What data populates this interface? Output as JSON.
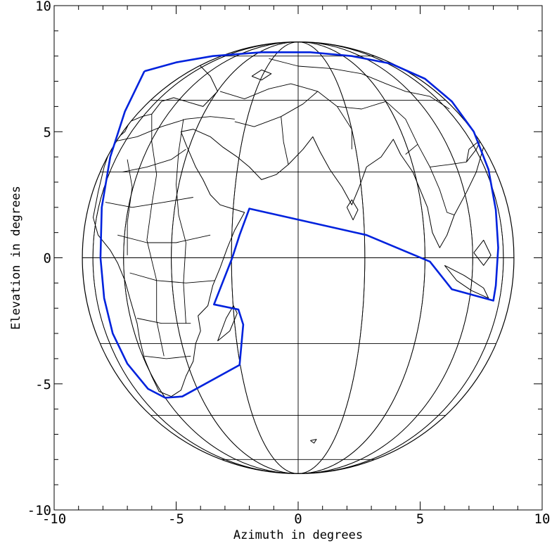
{
  "chart_data": {
    "type": "map",
    "xlabel": "Azimuth in degrees",
    "ylabel": "Elevation in degrees",
    "xlim": [
      -10,
      10
    ],
    "ylim": [
      -10,
      10
    ],
    "xticks": [
      {
        "value": -10,
        "label": "-10"
      },
      {
        "value": -5,
        "label": "-5"
      },
      {
        "value": 0,
        "label": "0"
      },
      {
        "value": 5,
        "label": "5"
      },
      {
        "value": 10,
        "label": "10"
      }
    ],
    "yticks": [
      {
        "value": -10,
        "label": "-10"
      },
      {
        "value": -5,
        "label": "-5"
      },
      {
        "value": 0,
        "label": "0"
      },
      {
        "value": 5,
        "label": "5"
      },
      {
        "value": 10,
        "label": "10"
      }
    ],
    "globe": {
      "center": [
        0,
        0
      ],
      "radius": 8.7,
      "meridian_sub_longitudes": [
        -72,
        -54,
        -36,
        -18,
        0,
        18,
        36,
        54,
        72
      ],
      "parallel_elevations": [
        -8.0,
        -6.25,
        -3.4,
        0,
        3.4,
        6.25,
        8.0
      ],
      "grid_color": "#000000"
    },
    "coverage_outline": {
      "color": "#0022dd",
      "points": [
        [
          -6.3,
          7.4
        ],
        [
          -5.0,
          7.75
        ],
        [
          -3.5,
          8.0
        ],
        [
          -1.5,
          8.15
        ],
        [
          0.5,
          8.15
        ],
        [
          2.2,
          8.0
        ],
        [
          3.8,
          7.7
        ],
        [
          5.2,
          7.1
        ],
        [
          6.3,
          6.2
        ],
        [
          7.2,
          5.0
        ],
        [
          7.8,
          3.5
        ],
        [
          8.1,
          1.9
        ],
        [
          8.2,
          0.4
        ],
        [
          8.1,
          -1.1
        ],
        [
          8.0,
          -1.7
        ],
        [
          6.3,
          -1.25
        ],
        [
          5.4,
          -0.15
        ],
        [
          2.8,
          0.9
        ],
        [
          -2.0,
          1.95
        ],
        [
          -2.4,
          0.9
        ],
        [
          -2.7,
          0.0
        ],
        [
          -3.45,
          -1.85
        ],
        [
          -2.45,
          -2.05
        ],
        [
          -2.25,
          -2.65
        ],
        [
          -2.4,
          -4.25
        ],
        [
          -4.75,
          -5.5
        ],
        [
          -5.45,
          -5.55
        ],
        [
          -6.15,
          -5.2
        ],
        [
          -7.0,
          -4.2
        ],
        [
          -7.6,
          -3.0
        ],
        [
          -7.95,
          -1.6
        ],
        [
          -8.1,
          0.0
        ],
        [
          -8.05,
          2.0
        ],
        [
          -7.7,
          4.0
        ],
        [
          -7.1,
          5.8
        ],
        [
          -6.3,
          7.4
        ]
      ]
    },
    "coastlines": [
      [
        [
          -7.0,
          7.9
        ],
        [
          -6.6,
          8.0
        ],
        [
          -6.0,
          7.95
        ],
        [
          -5.3,
          8.1
        ],
        [
          -4.6,
          8.0
        ],
        [
          -4.0,
          7.6
        ],
        [
          -3.6,
          7.2
        ],
        [
          -3.3,
          6.6
        ],
        [
          -3.6,
          6.3
        ],
        [
          -3.9,
          6.0
        ],
        [
          -4.6,
          6.2
        ],
        [
          -5.1,
          6.35
        ],
        [
          -5.6,
          6.2
        ],
        [
          -6.0,
          5.7
        ],
        [
          -6.4,
          5.6
        ],
        [
          -6.9,
          5.4
        ],
        [
          -7.1,
          5.0
        ],
        [
          -7.6,
          4.6
        ],
        [
          -7.95,
          3.6
        ],
        [
          -8.2,
          2.6
        ],
        [
          -8.4,
          1.6
        ],
        [
          -8.2,
          0.9
        ],
        [
          -7.7,
          0.3
        ],
        [
          -7.4,
          -0.2
        ],
        [
          -7.1,
          -0.9
        ],
        [
          -6.9,
          -1.6
        ],
        [
          -6.6,
          -2.6
        ],
        [
          -6.5,
          -3.2
        ],
        [
          -6.3,
          -4.0
        ],
        [
          -6.0,
          -4.7
        ],
        [
          -5.7,
          -5.3
        ],
        [
          -5.2,
          -5.5
        ],
        [
          -4.8,
          -5.25
        ],
        [
          -4.6,
          -4.7
        ],
        [
          -4.3,
          -4.1
        ],
        [
          -4.2,
          -3.4
        ],
        [
          -4.0,
          -2.9
        ],
        [
          -4.1,
          -2.3
        ],
        [
          -3.7,
          -1.9
        ],
        [
          -3.5,
          -1.1
        ],
        [
          -3.2,
          -0.4
        ],
        [
          -2.9,
          0.4
        ],
        [
          -2.6,
          1.1
        ],
        [
          -2.2,
          1.8
        ],
        [
          -2.7,
          1.95
        ],
        [
          -3.2,
          2.1
        ],
        [
          -3.6,
          2.5
        ],
        [
          -3.9,
          3.1
        ],
        [
          -4.2,
          3.6
        ],
        [
          -4.6,
          4.5
        ],
        [
          -4.8,
          5.0
        ],
        [
          -4.3,
          5.1
        ],
        [
          -3.6,
          4.8
        ],
        [
          -3.1,
          4.4
        ],
        [
          -2.5,
          4.0
        ],
        [
          -2.0,
          3.6
        ],
        [
          -1.5,
          3.1
        ],
        [
          -0.9,
          3.3
        ],
        [
          -0.4,
          3.7
        ],
        [
          0.2,
          4.3
        ],
        [
          0.6,
          4.8
        ],
        [
          0.9,
          4.2
        ],
        [
          1.3,
          3.5
        ],
        [
          1.8,
          2.8
        ],
        [
          2.2,
          2.1
        ],
        [
          2.5,
          2.8
        ],
        [
          2.8,
          3.6
        ],
        [
          3.4,
          4.0
        ],
        [
          3.9,
          4.7
        ],
        [
          4.2,
          4.1
        ],
        [
          4.7,
          3.4
        ],
        [
          5.0,
          2.7
        ],
        [
          5.3,
          2.0
        ],
        [
          5.5,
          1.0
        ],
        [
          5.8,
          0.4
        ],
        [
          6.1,
          0.9
        ],
        [
          6.4,
          1.7
        ],
        [
          6.9,
          2.6
        ],
        [
          7.3,
          3.4
        ],
        [
          7.6,
          4.4
        ],
        [
          7.2,
          5.4
        ],
        [
          6.6,
          6.2
        ],
        [
          5.9,
          7.0
        ],
        [
          5.0,
          7.7
        ],
        [
          4.0,
          8.2
        ],
        [
          2.8,
          8.5
        ],
        [
          1.5,
          8.6
        ],
        [
          0.0,
          8.65
        ],
        [
          -1.5,
          8.6
        ],
        [
          -3.0,
          8.45
        ],
        [
          -4.5,
          8.25
        ],
        [
          -6.0,
          8.1
        ],
        [
          -7.0,
          7.9
        ]
      ],
      [
        [
          -3.3,
          -3.3
        ],
        [
          -2.8,
          -2.9
        ],
        [
          -2.5,
          -2.2
        ],
        [
          -2.65,
          -1.9
        ],
        [
          -2.95,
          -2.4
        ],
        [
          -3.3,
          -3.3
        ]
      ],
      [
        [
          2.0,
          2.0
        ],
        [
          2.25,
          1.5
        ],
        [
          2.45,
          1.9
        ],
        [
          2.2,
          2.3
        ],
        [
          2.0,
          2.0
        ]
      ],
      [
        [
          6.0,
          -0.3
        ],
        [
          6.5,
          -0.9
        ],
        [
          7.1,
          -1.3
        ],
        [
          7.8,
          -1.6
        ],
        [
          7.6,
          -1.2
        ],
        [
          6.8,
          -0.7
        ],
        [
          6.0,
          -0.3
        ]
      ],
      [
        [
          7.2,
          0.2
        ],
        [
          7.6,
          -0.3
        ],
        [
          7.9,
          0.1
        ],
        [
          7.6,
          0.7
        ],
        [
          7.2,
          0.2
        ]
      ],
      [
        [
          6.9,
          3.8
        ],
        [
          7.3,
          4.3
        ],
        [
          7.5,
          4.7
        ],
        [
          7.0,
          4.3
        ],
        [
          6.9,
          3.8
        ]
      ],
      [
        [
          -1.9,
          7.2
        ],
        [
          -1.5,
          7.45
        ],
        [
          -1.1,
          7.3
        ],
        [
          -1.5,
          7.05
        ],
        [
          -1.9,
          7.2
        ]
      ],
      [
        [
          0.5,
          -7.25
        ],
        [
          0.75,
          -7.2
        ],
        [
          0.65,
          -7.35
        ],
        [
          0.5,
          -7.25
        ]
      ]
    ],
    "borders": [
      [
        [
          -7.6,
          4.6
        ],
        [
          -6.6,
          4.8
        ],
        [
          -5.6,
          5.2
        ],
        [
          -4.6,
          5.5
        ],
        [
          -3.6,
          5.6
        ],
        [
          -2.6,
          5.5
        ]
      ],
      [
        [
          -7.2,
          3.4
        ],
        [
          -6.2,
          3.6
        ],
        [
          -5.2,
          3.9
        ],
        [
          -4.6,
          4.3
        ]
      ],
      [
        [
          -7.9,
          2.2
        ],
        [
          -6.8,
          2.0
        ],
        [
          -5.5,
          2.2
        ],
        [
          -4.3,
          2.4
        ]
      ],
      [
        [
          -7.4,
          0.9
        ],
        [
          -6.2,
          0.6
        ],
        [
          -5.0,
          0.6
        ],
        [
          -3.6,
          0.9
        ]
      ],
      [
        [
          -6.9,
          -0.6
        ],
        [
          -5.8,
          -0.9
        ],
        [
          -4.6,
          -1.0
        ],
        [
          -3.4,
          -0.9
        ]
      ],
      [
        [
          -6.6,
          -2.4
        ],
        [
          -5.6,
          -2.6
        ],
        [
          -4.4,
          -2.6
        ]
      ],
      [
        [
          -6.3,
          -3.9
        ],
        [
          -5.4,
          -4.0
        ],
        [
          -4.4,
          -3.9
        ]
      ],
      [
        [
          -6.0,
          5.7
        ],
        [
          -6.0,
          4.6
        ],
        [
          -5.8,
          3.3
        ],
        [
          -6.0,
          2.1
        ],
        [
          -6.2,
          0.7
        ],
        [
          -5.8,
          -0.9
        ],
        [
          -5.8,
          -2.5
        ],
        [
          -5.5,
          -3.9
        ]
      ],
      [
        [
          -4.7,
          5.5
        ],
        [
          -4.9,
          4.2
        ],
        [
          -5.0,
          2.9
        ],
        [
          -4.9,
          1.7
        ],
        [
          -4.6,
          0.6
        ],
        [
          -4.7,
          -1.0
        ],
        [
          -4.6,
          -2.6
        ]
      ],
      [
        [
          -7.0,
          3.9
        ],
        [
          -6.8,
          2.8
        ],
        [
          -7.0,
          1.4
        ],
        [
          -7.0,
          0.1
        ]
      ],
      [
        [
          -3.2,
          6.6
        ],
        [
          -2.2,
          6.3
        ],
        [
          -1.2,
          6.7
        ],
        [
          -0.3,
          6.9
        ],
        [
          0.8,
          6.6
        ],
        [
          1.6,
          6.0
        ],
        [
          2.2,
          5.1
        ],
        [
          2.2,
          4.3
        ]
      ],
      [
        [
          -2.6,
          5.4
        ],
        [
          -1.8,
          5.2
        ],
        [
          -0.7,
          5.6
        ],
        [
          0.2,
          6.1
        ],
        [
          0.8,
          6.6
        ]
      ],
      [
        [
          -0.7,
          5.6
        ],
        [
          -0.6,
          4.6
        ],
        [
          -0.4,
          3.7
        ]
      ],
      [
        [
          1.6,
          6.0
        ],
        [
          2.6,
          5.9
        ],
        [
          3.6,
          6.2
        ],
        [
          4.4,
          5.5
        ],
        [
          4.9,
          4.5
        ],
        [
          4.4,
          4.1
        ]
      ],
      [
        [
          2.6,
          7.3
        ],
        [
          3.6,
          6.9
        ],
        [
          4.4,
          6.6
        ],
        [
          5.4,
          6.4
        ],
        [
          6.2,
          5.9
        ]
      ],
      [
        [
          -1.2,
          7.9
        ],
        [
          0.0,
          7.6
        ],
        [
          1.4,
          7.5
        ],
        [
          2.6,
          7.3
        ]
      ],
      [
        [
          4.9,
          4.5
        ],
        [
          5.4,
          3.6
        ],
        [
          5.8,
          2.7
        ],
        [
          6.1,
          1.8
        ],
        [
          6.4,
          1.7
        ]
      ],
      [
        [
          5.4,
          3.6
        ],
        [
          6.2,
          3.7
        ],
        [
          6.9,
          3.8
        ]
      ]
    ]
  }
}
